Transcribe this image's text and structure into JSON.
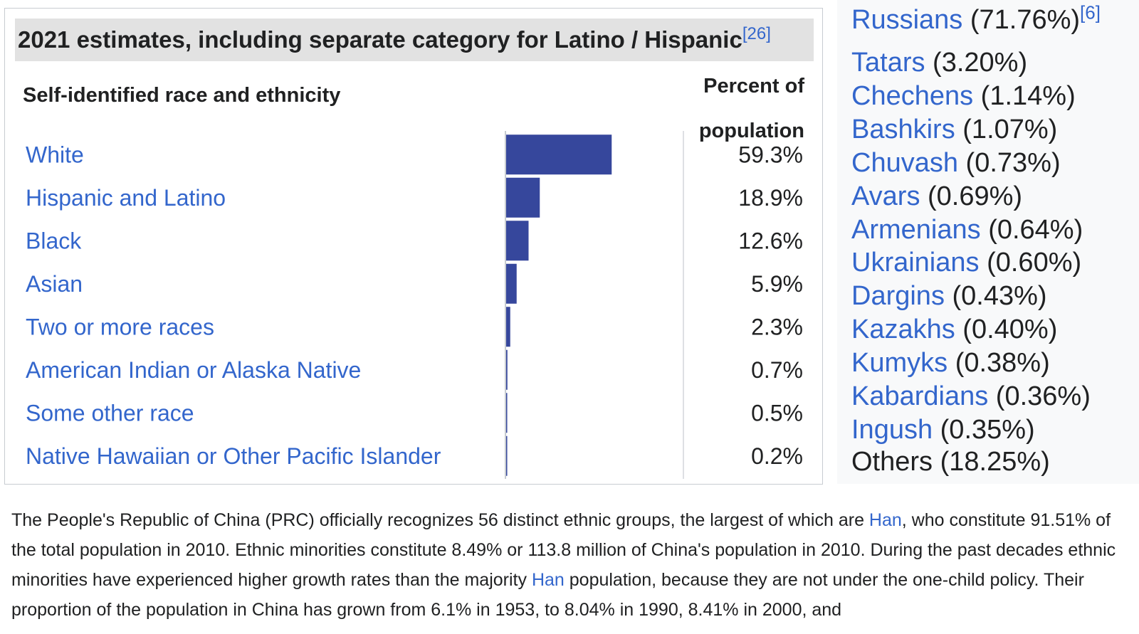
{
  "chart_data": {
    "type": "bar",
    "title": "2021 estimates, including separate category for Latino / Hispanic",
    "title_ref": "[26]",
    "category_header": "Self-identified race and ethnicity",
    "value_header_line1": "Percent of",
    "value_header_line2": "population",
    "categories": [
      "White",
      "Hispanic and Latino",
      "Black",
      "Asian",
      "Two or more races",
      "American Indian or Alaska Native",
      "Some other race",
      "Native Hawaiian or Other Pacific Islander"
    ],
    "values": [
      59.3,
      18.9,
      12.6,
      5.9,
      2.3,
      0.7,
      0.5,
      0.2
    ],
    "value_labels": [
      "59.3%",
      "18.9%",
      "12.6%",
      "5.9%",
      "2.3%",
      "0.7%",
      "0.5%",
      "0.2%"
    ],
    "bar_color": "#36479c",
    "link_color": "#3366cc"
  },
  "right_list": {
    "items": [
      {
        "name": "Russians",
        "pct": "(71.76%)",
        "ref": "[6]",
        "link": true
      },
      {
        "name": "Tatars",
        "pct": "(3.20%)",
        "ref": "",
        "link": true
      },
      {
        "name": "Chechens",
        "pct": "(1.14%)",
        "ref": "",
        "link": true
      },
      {
        "name": "Bashkirs",
        "pct": "(1.07%)",
        "ref": "",
        "link": true
      },
      {
        "name": "Chuvash",
        "pct": "(0.73%)",
        "ref": "",
        "link": true
      },
      {
        "name": "Avars",
        "pct": "(0.69%)",
        "ref": "",
        "link": true
      },
      {
        "name": "Armenians",
        "pct": "(0.64%)",
        "ref": "",
        "link": true
      },
      {
        "name": "Ukrainians",
        "pct": "(0.60%)",
        "ref": "",
        "link": true
      },
      {
        "name": "Dargins",
        "pct": "(0.43%)",
        "ref": "",
        "link": true
      },
      {
        "name": "Kazakhs",
        "pct": "(0.40%)",
        "ref": "",
        "link": true
      },
      {
        "name": "Kumyks",
        "pct": "(0.38%)",
        "ref": "",
        "link": true
      },
      {
        "name": "Kabardians",
        "pct": "(0.36%)",
        "ref": "",
        "link": true
      },
      {
        "name": "Ingush",
        "pct": "(0.35%)",
        "ref": "",
        "link": true
      },
      {
        "name": "Others",
        "pct": "(18.25%)",
        "ref": "",
        "link": false
      }
    ]
  },
  "paragraph": {
    "seg1": "The People's Republic of China (PRC) officially recognizes 56 distinct ethnic groups, the largest of which are ",
    "link1": "Han",
    "seg2": ", who constitute 91.51% of the total population in 2010. Ethnic minorities constitute 8.49% or 113.8 million of China's population in 2010. During the past decades ethnic minorities have experienced higher growth rates than the majority ",
    "link2": "Han",
    "seg3": " population, because they are not under the one-child policy. Their proportion of the population in China has grown from 6.1% in 1953, to 8.04% in 1990, 8.41% in 2000, and"
  }
}
